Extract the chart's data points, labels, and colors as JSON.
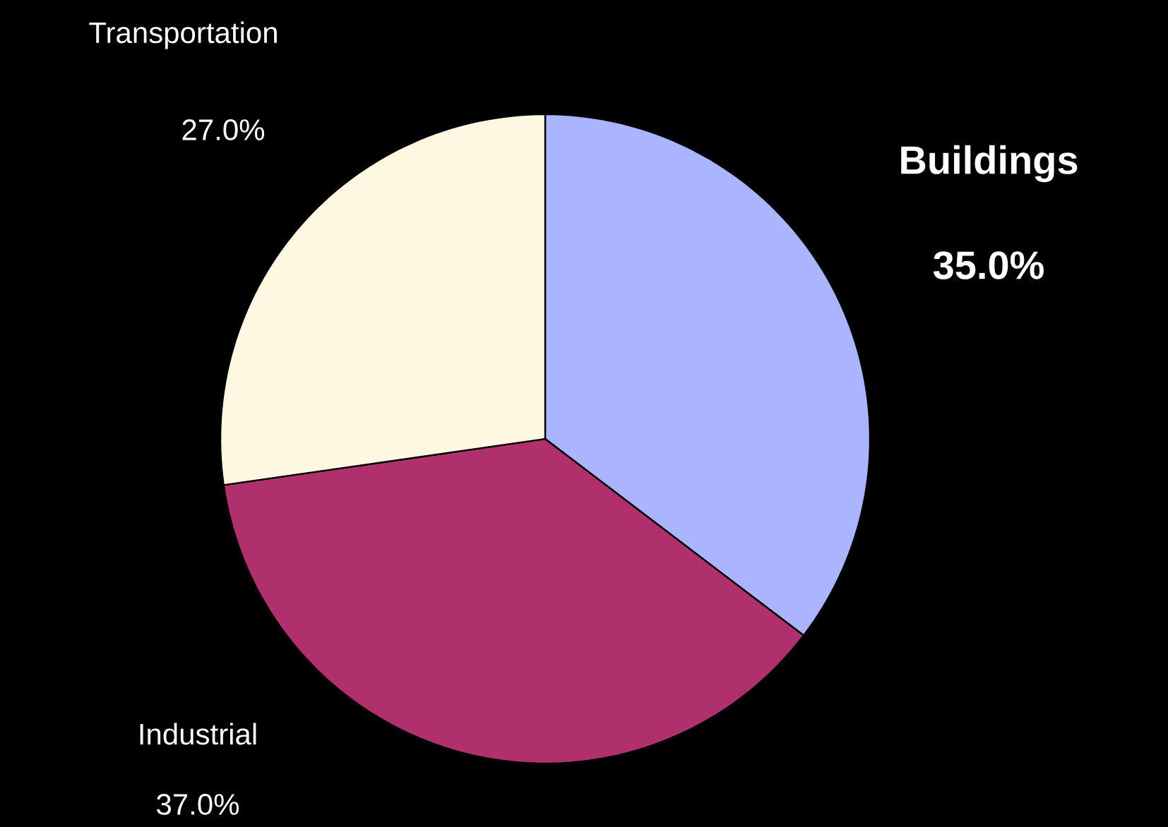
{
  "chart_data": {
    "type": "pie",
    "categories": [
      "Buildings",
      "Industrial",
      "Transportation"
    ],
    "values": [
      35.0,
      37.0,
      27.0
    ],
    "colors": [
      "#aab4ff",
      "#b0306e",
      "#fef8e2"
    ],
    "value_labels": [
      "35.0%",
      "37.0%",
      "27.0%"
    ]
  }
}
